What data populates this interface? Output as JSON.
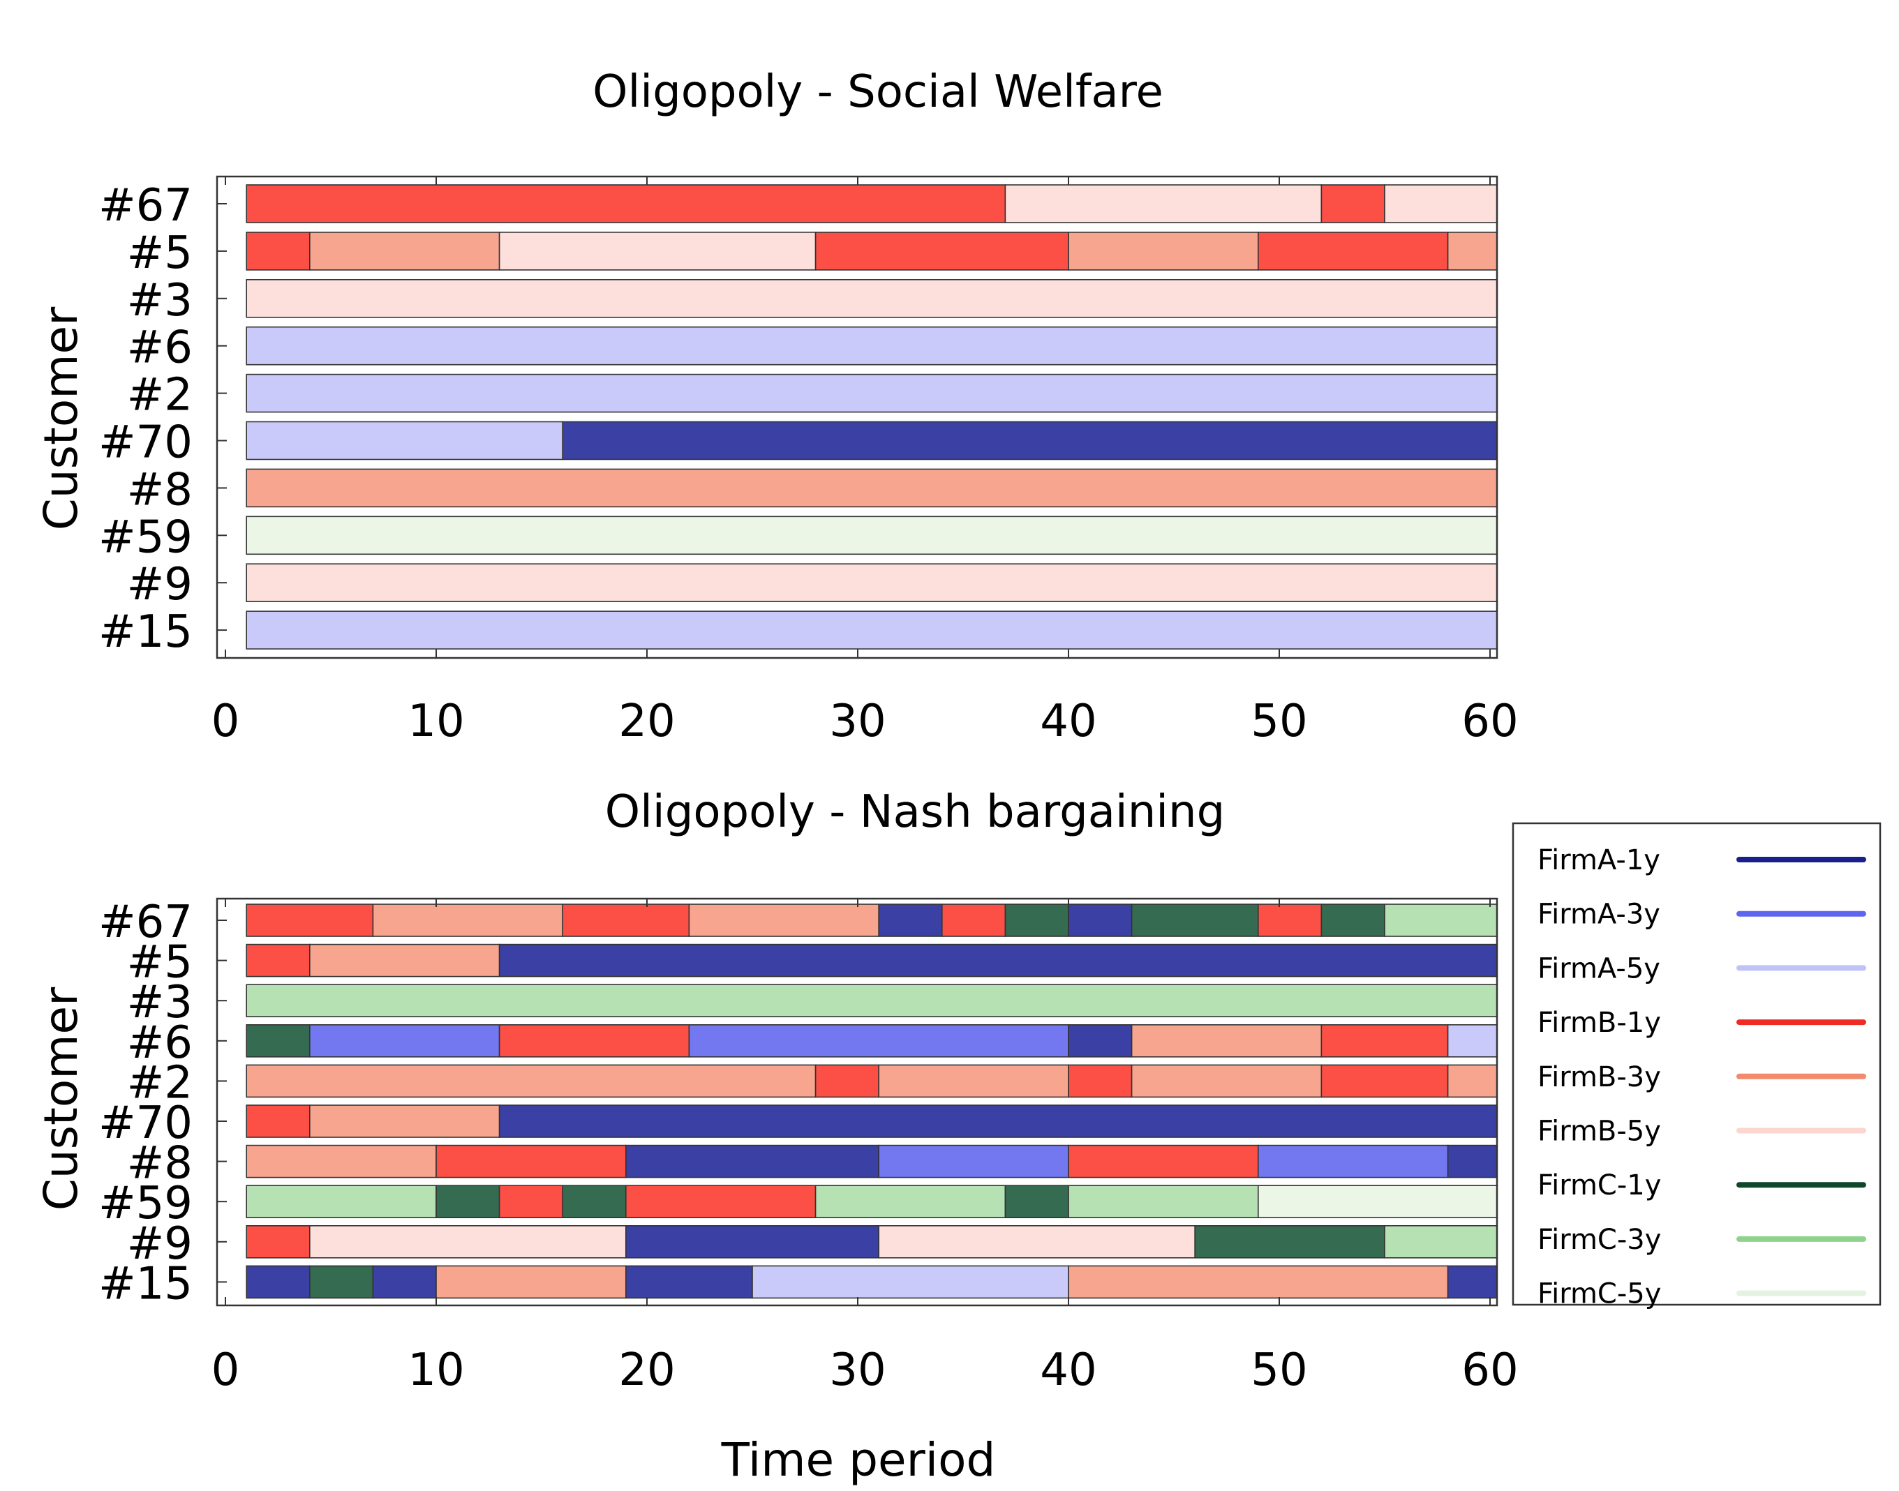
{
  "chart_data": [
    {
      "type": "gantt",
      "title": "Oligopoly - Social Welfare",
      "ylabel": "Customer",
      "xlabel": "",
      "xlim": [
        0,
        60
      ],
      "xticks": [
        0,
        10,
        20,
        30,
        40,
        50,
        60
      ],
      "categories": [
        "#67",
        "#5",
        "#3",
        "#6",
        "#2",
        "#70",
        "#8",
        "#59",
        "#9",
        "#15"
      ],
      "rows": [
        {
          "customer": "#67",
          "segments": [
            [
              1,
              37,
              "FirmB-1y"
            ],
            [
              37,
              52,
              "FirmB-5y"
            ],
            [
              52,
              55,
              "FirmB-1y"
            ],
            [
              55,
              61,
              "FirmB-5y"
            ]
          ]
        },
        {
          "customer": "#5",
          "segments": [
            [
              1,
              4,
              "FirmB-1y"
            ],
            [
              4,
              13,
              "FirmB-3y"
            ],
            [
              13,
              28,
              "FirmB-5y"
            ],
            [
              28,
              40,
              "FirmB-1y"
            ],
            [
              40,
              49,
              "FirmB-3y"
            ],
            [
              49,
              58,
              "FirmB-1y"
            ],
            [
              58,
              61,
              "FirmB-3y"
            ]
          ]
        },
        {
          "customer": "#3",
          "segments": [
            [
              1,
              61,
              "FirmB-5y"
            ]
          ]
        },
        {
          "customer": "#6",
          "segments": [
            [
              1,
              61,
              "FirmA-5y"
            ]
          ]
        },
        {
          "customer": "#2",
          "segments": [
            [
              1,
              61,
              "FirmA-5y"
            ]
          ]
        },
        {
          "customer": "#70",
          "segments": [
            [
              1,
              16,
              "FirmA-5y"
            ],
            [
              16,
              61,
              "FirmA-1y"
            ]
          ]
        },
        {
          "customer": "#8",
          "segments": [
            [
              1,
              61,
              "FirmB-3y"
            ]
          ]
        },
        {
          "customer": "#59",
          "segments": [
            [
              1,
              61,
              "FirmC-5y"
            ]
          ]
        },
        {
          "customer": "#9",
          "segments": [
            [
              1,
              61,
              "FirmB-5y"
            ]
          ]
        },
        {
          "customer": "#15",
          "segments": [
            [
              1,
              61,
              "FirmA-5y"
            ]
          ]
        }
      ]
    },
    {
      "type": "gantt",
      "title": "Oligopoly - Nash bargaining",
      "ylabel": "Customer",
      "xlabel": "Time period",
      "xlim": [
        0,
        60
      ],
      "xticks": [
        0,
        10,
        20,
        30,
        40,
        50,
        60
      ],
      "categories": [
        "#67",
        "#5",
        "#3",
        "#6",
        "#2",
        "#70",
        "#8",
        "#59",
        "#9",
        "#15"
      ],
      "rows": [
        {
          "customer": "#67",
          "segments": [
            [
              1,
              7,
              "FirmB-1y"
            ],
            [
              7,
              16,
              "FirmB-3y"
            ],
            [
              16,
              22,
              "FirmB-1y"
            ],
            [
              22,
              31,
              "FirmB-3y"
            ],
            [
              31,
              34,
              "FirmA-1y"
            ],
            [
              34,
              37,
              "FirmB-1y"
            ],
            [
              37,
              40,
              "FirmC-1y"
            ],
            [
              40,
              43,
              "FirmA-1y"
            ],
            [
              43,
              49,
              "FirmC-1y"
            ],
            [
              49,
              52,
              "FirmB-1y"
            ],
            [
              52,
              55,
              "FirmC-1y"
            ],
            [
              55,
              61,
              "FirmC-3y"
            ]
          ]
        },
        {
          "customer": "#5",
          "segments": [
            [
              1,
              4,
              "FirmB-1y"
            ],
            [
              4,
              13,
              "FirmB-3y"
            ],
            [
              13,
              61,
              "FirmA-1y"
            ]
          ]
        },
        {
          "customer": "#3",
          "segments": [
            [
              1,
              61,
              "FirmC-3y"
            ]
          ]
        },
        {
          "customer": "#6",
          "segments": [
            [
              1,
              4,
              "FirmC-1y"
            ],
            [
              4,
              13,
              "FirmA-3y"
            ],
            [
              13,
              22,
              "FirmB-1y"
            ],
            [
              22,
              40,
              "FirmA-3y"
            ],
            [
              40,
              43,
              "FirmA-1y"
            ],
            [
              43,
              52,
              "FirmB-3y"
            ],
            [
              52,
              58,
              "FirmB-1y"
            ],
            [
              58,
              61,
              "FirmA-5y"
            ]
          ]
        },
        {
          "customer": "#2",
          "segments": [
            [
              1,
              28,
              "FirmB-3y"
            ],
            [
              28,
              31,
              "FirmB-1y"
            ],
            [
              31,
              40,
              "FirmB-3y"
            ],
            [
              40,
              43,
              "FirmB-1y"
            ],
            [
              43,
              52,
              "FirmB-3y"
            ],
            [
              52,
              58,
              "FirmB-1y"
            ],
            [
              58,
              61,
              "FirmB-3y"
            ]
          ]
        },
        {
          "customer": "#70",
          "segments": [
            [
              1,
              4,
              "FirmB-1y"
            ],
            [
              4,
              13,
              "FirmB-3y"
            ],
            [
              13,
              61,
              "FirmA-1y"
            ]
          ]
        },
        {
          "customer": "#8",
          "segments": [
            [
              1,
              10,
              "FirmB-3y"
            ],
            [
              10,
              19,
              "FirmB-1y"
            ],
            [
              19,
              31,
              "FirmA-1y"
            ],
            [
              31,
              40,
              "FirmA-3y"
            ],
            [
              40,
              49,
              "FirmB-1y"
            ],
            [
              49,
              58,
              "FirmA-3y"
            ],
            [
              58,
              61,
              "FirmA-1y"
            ]
          ]
        },
        {
          "customer": "#59",
          "segments": [
            [
              1,
              10,
              "FirmC-3y"
            ],
            [
              10,
              13,
              "FirmC-1y"
            ],
            [
              13,
              16,
              "FirmB-1y"
            ],
            [
              16,
              19,
              "FirmC-1y"
            ],
            [
              19,
              28,
              "FirmB-1y"
            ],
            [
              28,
              37,
              "FirmC-3y"
            ],
            [
              37,
              40,
              "FirmC-1y"
            ],
            [
              40,
              49,
              "FirmC-3y"
            ],
            [
              49,
              61,
              "FirmC-5y"
            ]
          ]
        },
        {
          "customer": "#9",
          "segments": [
            [
              1,
              4,
              "FirmB-1y"
            ],
            [
              4,
              19,
              "FirmB-5y"
            ],
            [
              19,
              31,
              "FirmA-1y"
            ],
            [
              31,
              46,
              "FirmB-5y"
            ],
            [
              46,
              55,
              "FirmC-1y"
            ],
            [
              55,
              61,
              "FirmC-3y"
            ]
          ]
        },
        {
          "customer": "#15",
          "segments": [
            [
              1,
              4,
              "FirmA-1y"
            ],
            [
              4,
              7,
              "FirmC-1y"
            ],
            [
              7,
              10,
              "FirmA-1y"
            ],
            [
              10,
              19,
              "FirmB-3y"
            ],
            [
              19,
              25,
              "FirmA-1y"
            ],
            [
              25,
              40,
              "FirmA-5y"
            ],
            [
              40,
              58,
              "FirmB-3y"
            ],
            [
              58,
              61,
              "FirmA-1y"
            ]
          ]
        }
      ]
    }
  ],
  "legend": {
    "position": "right",
    "entries": [
      {
        "label": "FirmA-1y",
        "color": "#1a1f8c",
        "fill": "#3b40a4"
      },
      {
        "label": "FirmA-3y",
        "color": "#5d67ee",
        "fill": "#7378f0"
      },
      {
        "label": "FirmA-5y",
        "color": "#bfc3f7",
        "fill": "#c9caf9"
      },
      {
        "label": "FirmB-1y",
        "color": "#ef2b26",
        "fill": "#fc4f45"
      },
      {
        "label": "FirmB-3y",
        "color": "#f28a6e",
        "fill": "#f8a590"
      },
      {
        "label": "FirmB-5y",
        "color": "#fcd6cf",
        "fill": "#fde0db"
      },
      {
        "label": "FirmC-1y",
        "color": "#10472b",
        "fill": "#356b50"
      },
      {
        "label": "FirmC-3y",
        "color": "#8fd28e",
        "fill": "#b6e2b3"
      },
      {
        "label": "FirmC-5y",
        "color": "#e3f3df",
        "fill": "#ebf6e7"
      }
    ]
  }
}
